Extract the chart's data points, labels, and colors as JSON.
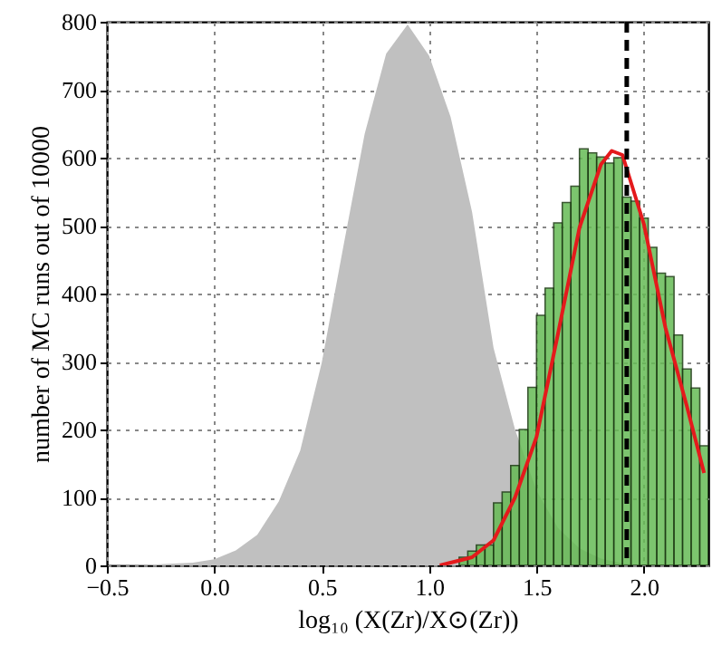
{
  "chart_data": {
    "type": "histogram",
    "xlabel": "log₁₀ (X(Zr)/X⊙(Zr))",
    "ylabel": "number of MC runs out of 10000",
    "xlim": [
      -0.5,
      2.3
    ],
    "ylim": [
      0,
      800
    ],
    "xticks": [
      {
        "value": -0.5,
        "label": "−0.5"
      },
      {
        "value": 0,
        "label": "0.0"
      },
      0.5,
      {
        "value": 1,
        "label": "1.0"
      },
      1.5,
      {
        "value": 2,
        "label": "2.0"
      }
    ],
    "yticks": [
      0,
      100,
      200,
      300,
      400,
      500,
      600,
      700,
      800
    ],
    "grid": true,
    "series": [
      {
        "type": "area",
        "color": "#c0c0c0",
        "x": [
          -0.5,
          -0.3,
          -0.1,
          0,
          0.1,
          0.2,
          0.3,
          0.4,
          0.5,
          0.6,
          0.7,
          0.8,
          0.9,
          1.0,
          1.1,
          1.2,
          1.3,
          1.4,
          1.5,
          1.6,
          1.7,
          1.8,
          1.9,
          2.0
        ],
        "values": [
          0,
          1,
          4,
          9,
          22,
          45,
          94,
          169,
          298,
          468,
          635,
          753,
          796,
          750,
          660,
          520,
          320,
          200,
          110,
          55,
          25,
          10,
          3,
          0
        ]
      },
      {
        "color": "#66bb55",
        "bins": [
          1.14,
          1.18,
          1.22,
          1.26,
          1.3,
          1.34,
          1.38,
          1.42,
          1.46,
          1.5,
          1.54,
          1.58,
          1.62,
          1.66,
          1.7,
          1.74,
          1.78,
          1.82,
          1.86,
          1.9,
          1.94,
          1.98,
          2.02,
          2.06,
          2.1,
          2.14,
          2.18,
          2.22,
          2.26,
          2.3
        ],
        "values": [
          12,
          21,
          30,
          30,
          92,
          108,
          147,
          200,
          262,
          368,
          408,
          504,
          534,
          558,
          613,
          607,
          601,
          592,
          600,
          542,
          536,
          511,
          468,
          430,
          425,
          339,
          289,
          261,
          176
        ]
      },
      {
        "type": "line",
        "color": "#e41a1c",
        "x": [
          1.05,
          1.1,
          1.2,
          1.3,
          1.4,
          1.5,
          1.6,
          1.7,
          1.8,
          1.85,
          1.9,
          2.0,
          2.1,
          2.2,
          2.28
        ],
        "values": [
          0,
          4,
          12,
          37,
          100,
          189,
          341,
          497,
          590,
          610,
          604,
          502,
          350,
          234,
          136
        ]
      }
    ],
    "ref_lines": [
      {
        "axis": "x",
        "value": 1.92,
        "color": "#000000",
        "line_style": "dashed"
      }
    ]
  }
}
